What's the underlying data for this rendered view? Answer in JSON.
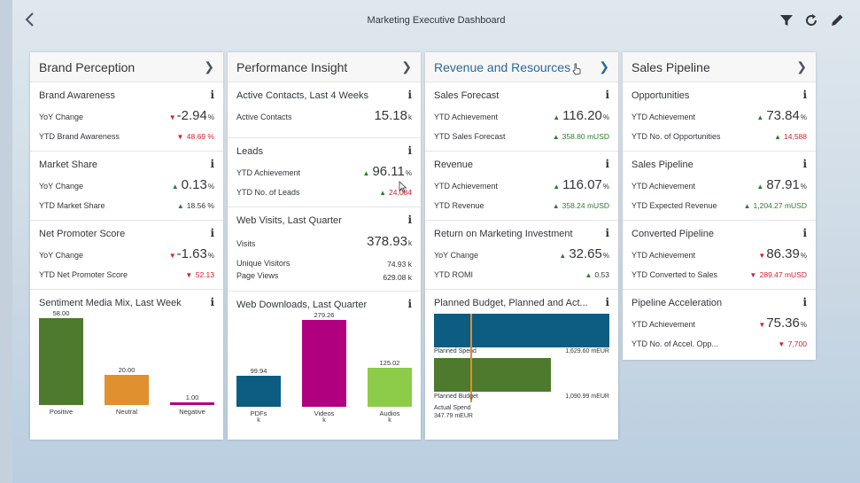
{
  "app": {
    "title": "Marketing Executive Dashboard",
    "back_icon": "chevron-left-icon",
    "toolbar": [
      "filter-icon",
      "refresh-icon",
      "edit-icon"
    ]
  },
  "colors": {
    "accent": "#2b6a9a",
    "positive": "#2b7d2b",
    "negative": "#d32030",
    "bar_green": "#4d7a2c",
    "bar_orange": "#e0902e",
    "bar_magenta": "#b0007f",
    "bar_teal": "#0d5c82",
    "bar_lime": "#8ccc49"
  },
  "brand": {
    "title": "Brand Perception",
    "awareness": {
      "title": "Brand Awareness",
      "label1": "YoY Change",
      "value1": "-2.94",
      "unit1": "%",
      "label2": "YTD Brand Awareness",
      "value2": "48.69 %"
    },
    "market": {
      "title": "Market Share",
      "label1": "YoY Change",
      "value1": "0.13",
      "unit1": "%",
      "label2": "YTD Market Share",
      "value2": "18.56 %"
    },
    "nps": {
      "title": "Net Promoter Score",
      "label1": "YoY Change",
      "value1": "-1.63",
      "unit1": "%",
      "label2": "YTD Net Promoter Score",
      "value2": "52.13"
    },
    "sentiment": {
      "title": "Sentiment Media Mix, Last Week",
      "bars": [
        {
          "label": "Positive",
          "value": "58.00"
        },
        {
          "label": "Neutral",
          "value": "20.00"
        },
        {
          "label": "Negative",
          "value": "1.00"
        }
      ]
    }
  },
  "performance": {
    "title": "Performance Insight",
    "contacts": {
      "title": "Active Contacts, Last 4 Weeks",
      "label1": "Active Contacts",
      "value1": "15.18",
      "unit1": "k"
    },
    "leads": {
      "title": "Leads",
      "label1": "YTD Achievement",
      "value1": "96.11",
      "unit1": "%",
      "label2": "YTD No. of Leads",
      "value2": "24,084"
    },
    "visits": {
      "title": "Web Visits, Last Quarter",
      "label1": "Visits",
      "value1": "378.93",
      "unit1": "k",
      "label2": "Unique Visitors",
      "value2": "74.93 k",
      "label3": "Page Views",
      "value3": "629.08 k"
    },
    "downloads": {
      "title": "Web Downloads, Last Quarter",
      "bars": [
        {
          "label": "PDFs",
          "unit": "k",
          "value": "99.94"
        },
        {
          "label": "Videos",
          "unit": "k",
          "value": "279.26"
        },
        {
          "label": "Audios",
          "unit": "k",
          "value": "125.02"
        }
      ]
    }
  },
  "revenue": {
    "title": "Revenue and Resources",
    "forecast": {
      "title": "Sales Forecast",
      "label1": "YTD Achievement",
      "value1": "116.20",
      "unit1": "%",
      "label2": "YTD Sales Forecast",
      "value2": "358.80 mUSD"
    },
    "revenue": {
      "title": "Revenue",
      "label1": "YTD Achievement",
      "value1": "116.07",
      "unit1": "%",
      "label2": "YTD Revenue",
      "value2": "358.24 mUSD"
    },
    "romi": {
      "title": "Return on Marketing Investment",
      "label1": "YoY Change",
      "value1": "32.65",
      "unit1": "%",
      "label2": "YTD ROMI",
      "value2": "0.53"
    },
    "budget": {
      "title": "Planned Budget, Planned and Act...",
      "spend_label": "Planned Spend",
      "spend_value": "1,629.60 mEUR",
      "budget_label": "Planned Budget",
      "budget_value": "1,090.99 mEUR",
      "actual_label": "Actual Spend",
      "actual_value": "347.79 mEUR"
    }
  },
  "pipeline": {
    "title": "Sales Pipeline",
    "opps": {
      "title": "Opportunities",
      "label1": "YTD Achievement",
      "value1": "73.84",
      "unit1": "%",
      "label2": "YTD No. of Opportunities",
      "value2": "14,588"
    },
    "pipe": {
      "title": "Sales Pipeline",
      "label1": "YTD Achievement",
      "value1": "87.91",
      "unit1": "%",
      "label2": "YTD Expected Revenue",
      "value2": "1,204.27 mUSD"
    },
    "converted": {
      "title": "Converted Pipeline",
      "label1": "YTD Achievement",
      "value1": "86.39",
      "unit1": "%",
      "label2": "YTD Converted to Sales",
      "value2": "289.47 mUSD"
    },
    "accel": {
      "title": "Pipeline Acceleration",
      "label1": "YTD Achievement",
      "value1": "75.36",
      "unit1": "%",
      "label2": "YTD No. of Accel. Opp...",
      "value2": "7,700"
    }
  },
  "info_label": "i"
}
